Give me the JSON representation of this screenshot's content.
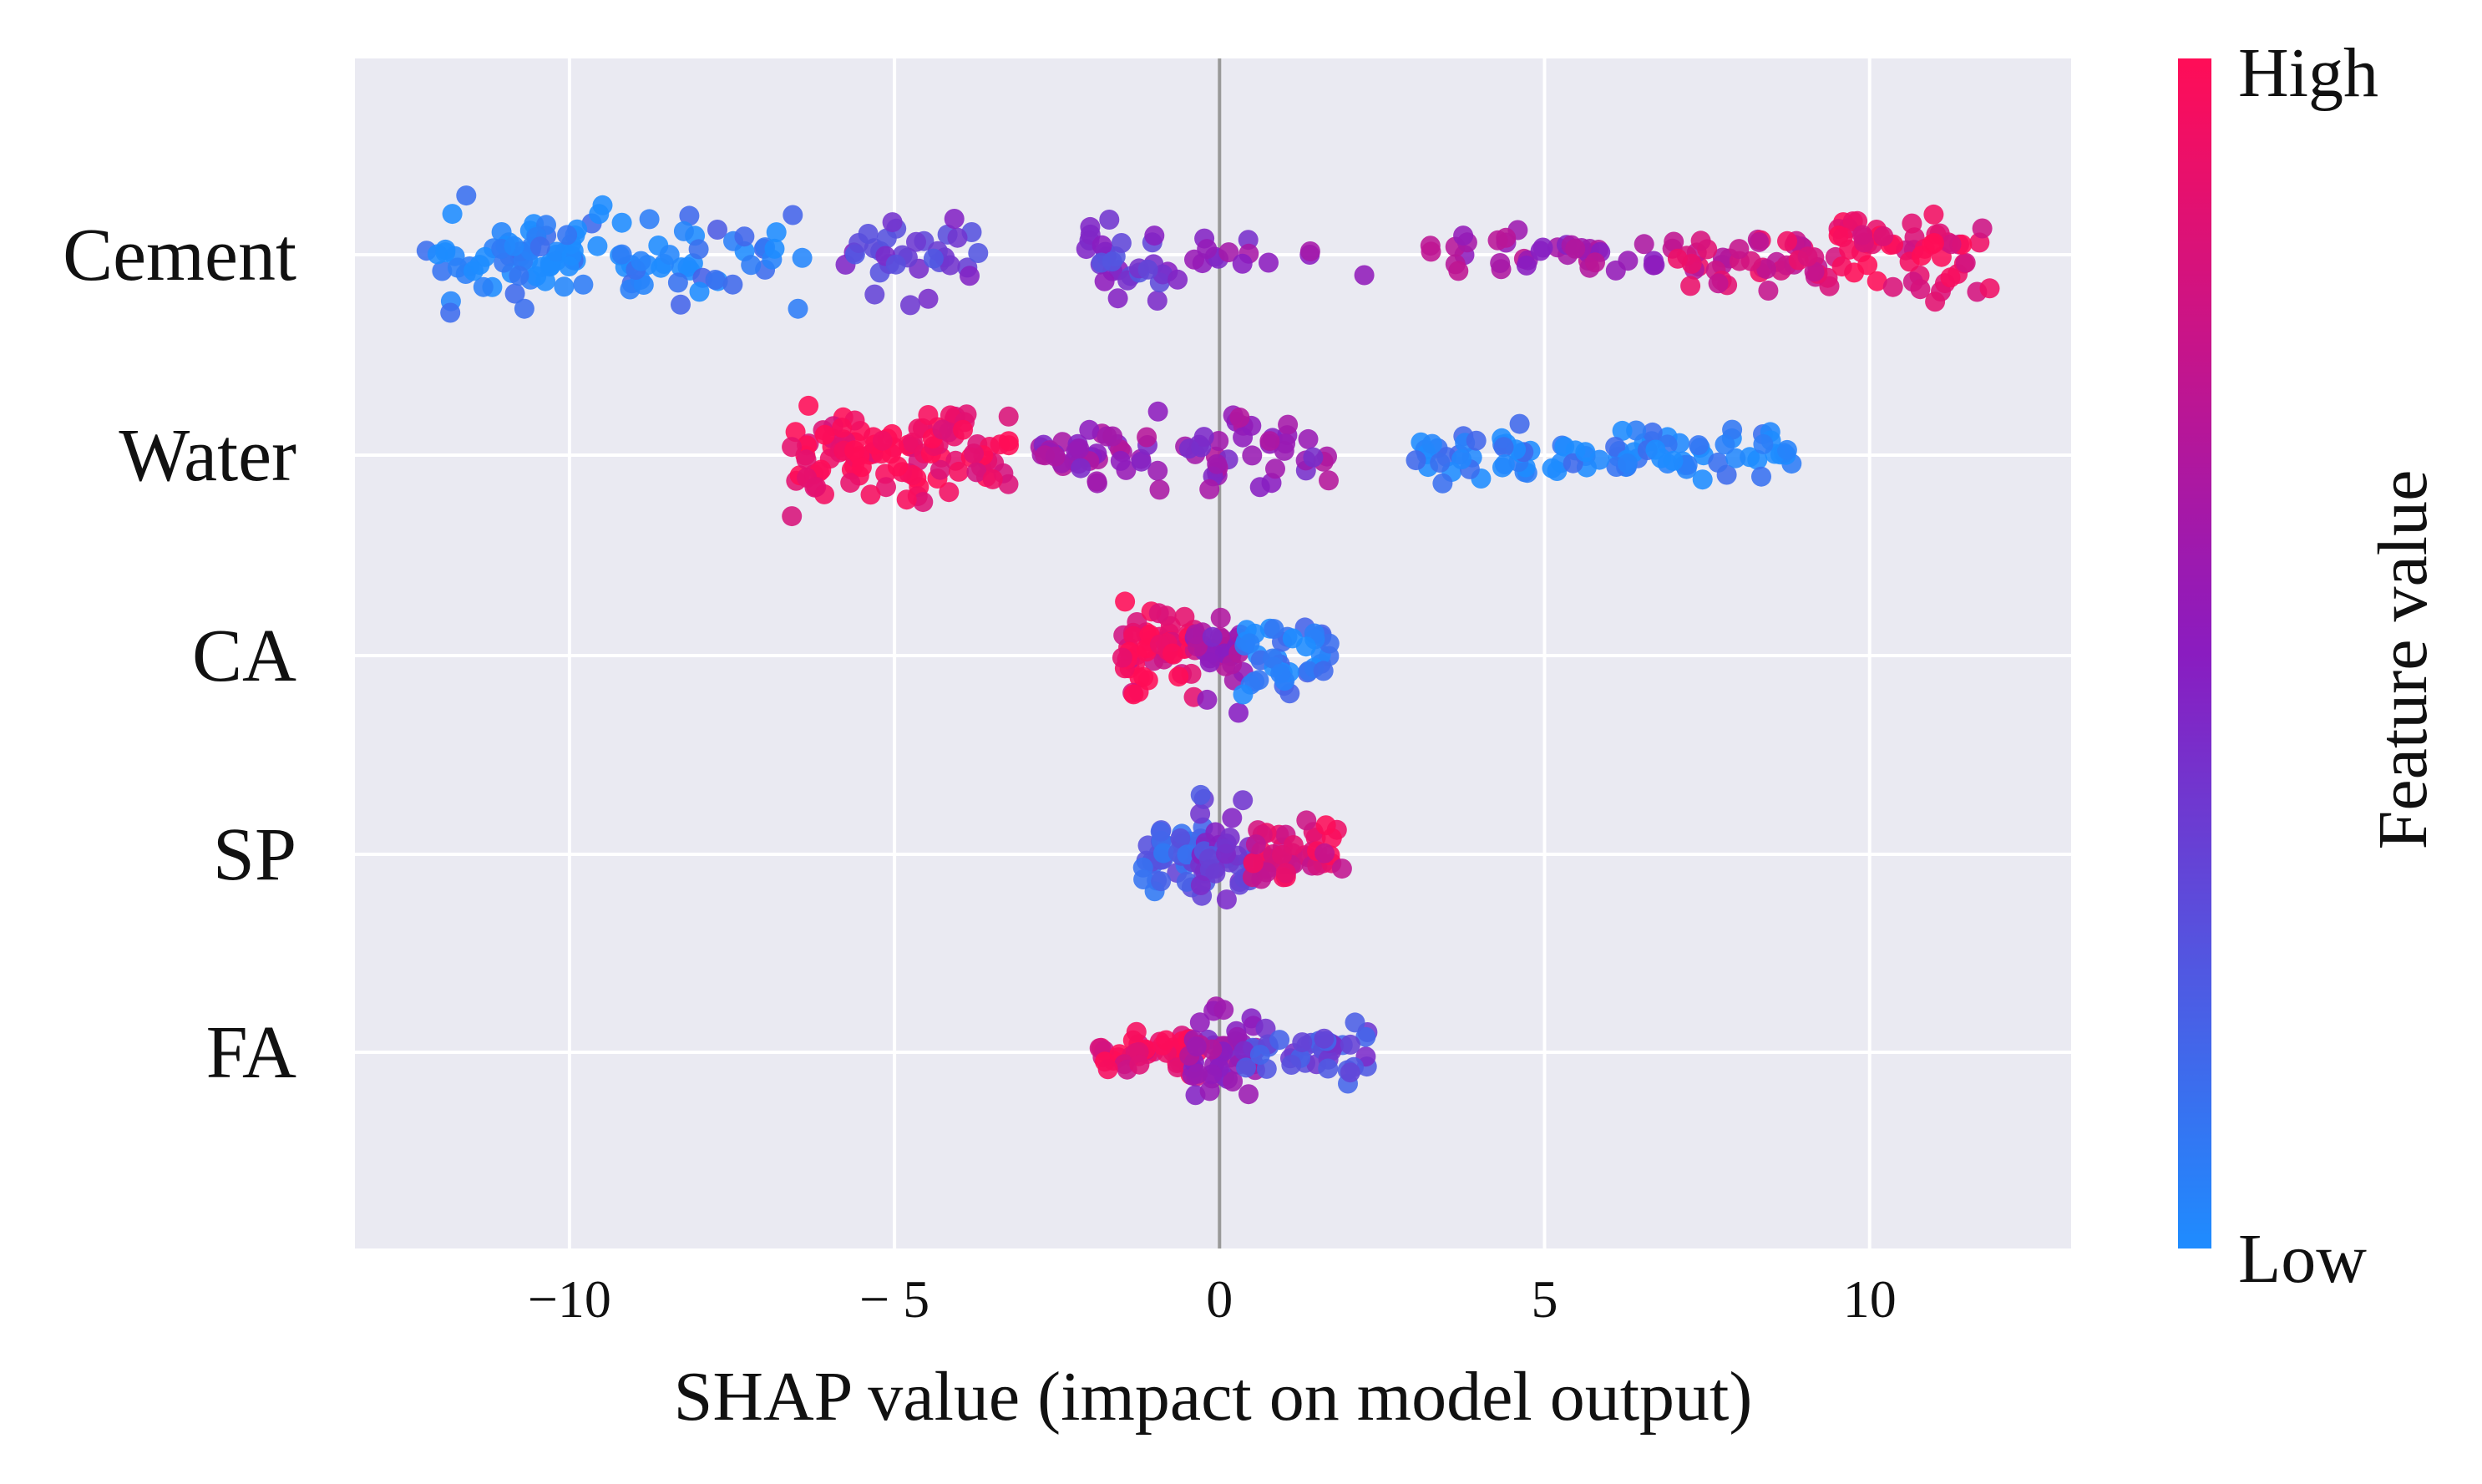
{
  "chart_data": {
    "type": "beeswarm",
    "title": "",
    "xlabel": "SHAP value (impact on model output)",
    "xlim": [
      -13.3,
      13.1
    ],
    "xticks": [
      {
        "value": -10,
        "label": "−10"
      },
      {
        "value": -5,
        "label": "− 5"
      },
      {
        "value": 0,
        "label": "0"
      },
      {
        "value": 5,
        "label": "5"
      },
      {
        "value": 10,
        "label": "10"
      }
    ],
    "colorbar": {
      "high_label": "High",
      "low_label": "Low",
      "title": "Feature value"
    },
    "colors": {
      "low": "#1e8cff",
      "mid": "#8a1cc0",
      "high": "#ff0d57",
      "background": "#eaeaf2",
      "grid": "#ffffff",
      "zero_line": "#999999"
    },
    "features": [
      {
        "name": "Cement",
        "clusters": [
          {
            "xmin": -12.2,
            "xmax": -9.2,
            "fv": 0.02,
            "n": 70,
            "spread": 1.0
          },
          {
            "xmin": -9.2,
            "xmax": -6.3,
            "fv": 0.08,
            "n": 45,
            "spread": 1.0
          },
          {
            "xmin": -5.8,
            "xmax": -3.6,
            "fv": 0.35,
            "n": 34,
            "spread": 0.85
          },
          {
            "xmin": -2.1,
            "xmax": -0.6,
            "fv": 0.38,
            "n": 30,
            "spread": 1.0
          },
          {
            "xmin": -0.6,
            "xmax": 2.3,
            "fv": 0.5,
            "n": 14,
            "spread": 0.45
          },
          {
            "xmin": 3.2,
            "xmax": 7.0,
            "fv": 0.6,
            "n": 40,
            "spread": 0.5
          },
          {
            "xmin": 7.0,
            "xmax": 9.5,
            "fv": 0.8,
            "n": 45,
            "spread": 0.7
          },
          {
            "xmin": 9.5,
            "xmax": 11.9,
            "fv": 0.92,
            "n": 55,
            "spread": 1.0
          }
        ]
      },
      {
        "name": "Water",
        "clusters": [
          {
            "xmin": -6.6,
            "xmax": -3.2,
            "fv": 0.95,
            "n": 110,
            "spread": 1.0
          },
          {
            "xmin": -2.8,
            "xmax": 1.8,
            "fv": 0.55,
            "n": 80,
            "spread": 0.8
          },
          {
            "xmin": 3.0,
            "xmax": 8.9,
            "fv": 0.04,
            "n": 95,
            "spread": 0.55
          }
        ]
      },
      {
        "name": "CA",
        "clusters": [
          {
            "xmin": -1.5,
            "xmax": -0.2,
            "fv": 0.9,
            "n": 55,
            "spread": 0.9
          },
          {
            "xmin": -0.4,
            "xmax": 0.4,
            "fv": 0.55,
            "n": 30,
            "spread": 1.0
          },
          {
            "xmin": 0.3,
            "xmax": 1.7,
            "fv": 0.06,
            "n": 40,
            "spread": 0.85
          }
        ]
      },
      {
        "name": "SP",
        "clusters": [
          {
            "xmin": -1.2,
            "xmax": -0.2,
            "fv": 0.2,
            "n": 40,
            "spread": 0.8
          },
          {
            "xmin": -0.3,
            "xmax": 0.5,
            "fv": 0.35,
            "n": 35,
            "spread": 1.0
          },
          {
            "xmin": 0.5,
            "xmax": 1.9,
            "fv": 0.85,
            "n": 45,
            "spread": 0.7
          }
        ]
      },
      {
        "name": "FA",
        "clusters": [
          {
            "xmin": -1.9,
            "xmax": -0.3,
            "fv": 0.9,
            "n": 45,
            "spread": 0.5
          },
          {
            "xmin": -0.5,
            "xmax": 0.6,
            "fv": 0.55,
            "n": 45,
            "spread": 1.0
          },
          {
            "xmin": 0.3,
            "xmax": 2.3,
            "fv": 0.3,
            "n": 40,
            "spread": 0.6
          }
        ]
      }
    ]
  }
}
